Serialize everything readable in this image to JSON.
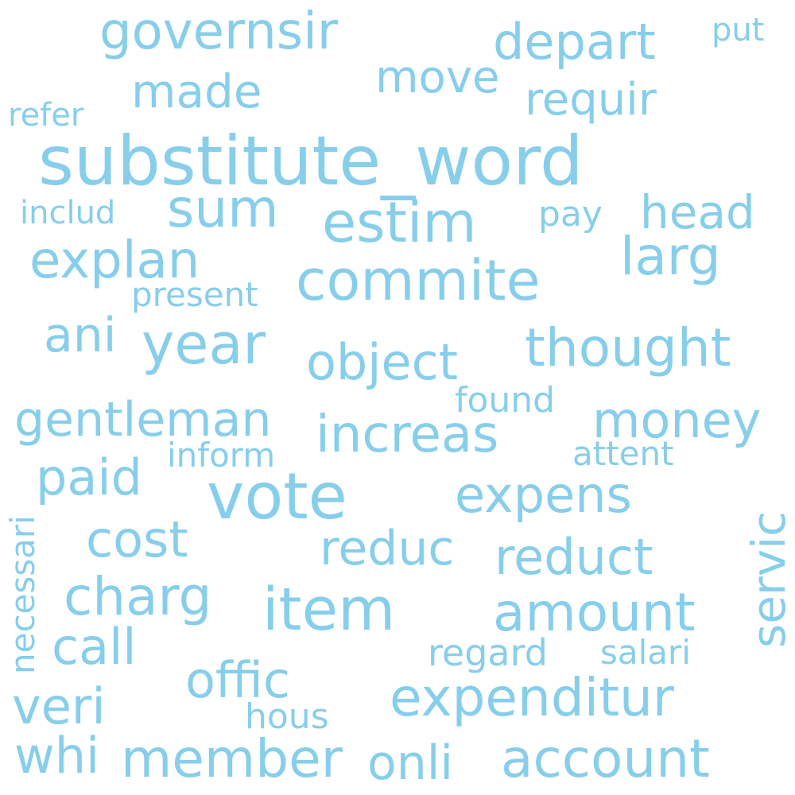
{
  "colors": {
    "background": "#ffffff",
    "word": "#87ceeb"
  },
  "words": [
    "substitute_word",
    "vote",
    "commite",
    "governsir",
    "depart",
    "move",
    "made",
    "requir",
    "put",
    "refer",
    "sum",
    "estim",
    "head",
    "includ",
    "pay",
    "explan",
    "larg",
    "present",
    "ani",
    "year",
    "thought",
    "object",
    "found",
    "gentleman",
    "increas",
    "money",
    "inform",
    "attent",
    "paid",
    "necessari",
    "expens",
    "servic",
    "cost",
    "reduc",
    "reduct",
    "charg",
    "item",
    "amount",
    "call",
    "regard",
    "salari",
    "offic",
    "veri",
    "expenditur",
    "hous",
    "whi",
    "member",
    "onli",
    "account"
  ]
}
